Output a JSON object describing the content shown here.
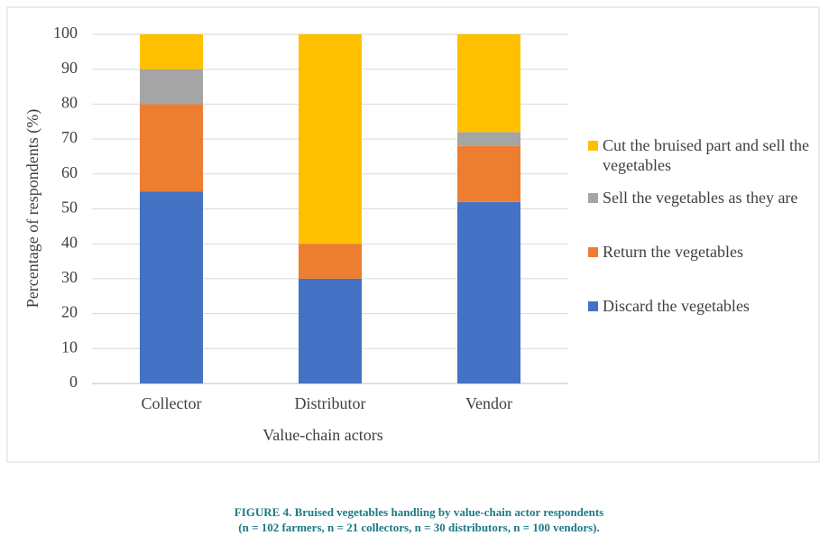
{
  "chart_data": {
    "type": "stacked_bar",
    "categories": [
      "Collector",
      "Distributor",
      "Vendor"
    ],
    "series": [
      {
        "name": "Discard the vegetables",
        "color": "#4472c4",
        "values": [
          55,
          30,
          52
        ]
      },
      {
        "name": "Return the vegetables",
        "color": "#ed7d31",
        "values": [
          25,
          10,
          16
        ]
      },
      {
        "name": "Sell the vegetables as they are",
        "color": "#a5a5a5",
        "values": [
          10,
          0,
          4
        ]
      },
      {
        "name": "Cut the bruised part and sell the vegetables",
        "color": "#ffc000",
        "values": [
          10,
          60,
          28
        ]
      }
    ],
    "xlabel": "Value-chain actors",
    "ylabel": "Percentage of respondents (%)",
    "ylim": [
      0,
      100
    ],
    "yticks": [
      0,
      10,
      20,
      30,
      40,
      50,
      60,
      70,
      80,
      90,
      100
    ],
    "grid": true,
    "legend": "right",
    "caption": [
      "FIGURE 4. Bruised vegetables handling by value-chain actor respondents",
      "(n = 102 farmers, n = 21 collectors, n = 30 distributors, n = 100 vendors)."
    ]
  }
}
